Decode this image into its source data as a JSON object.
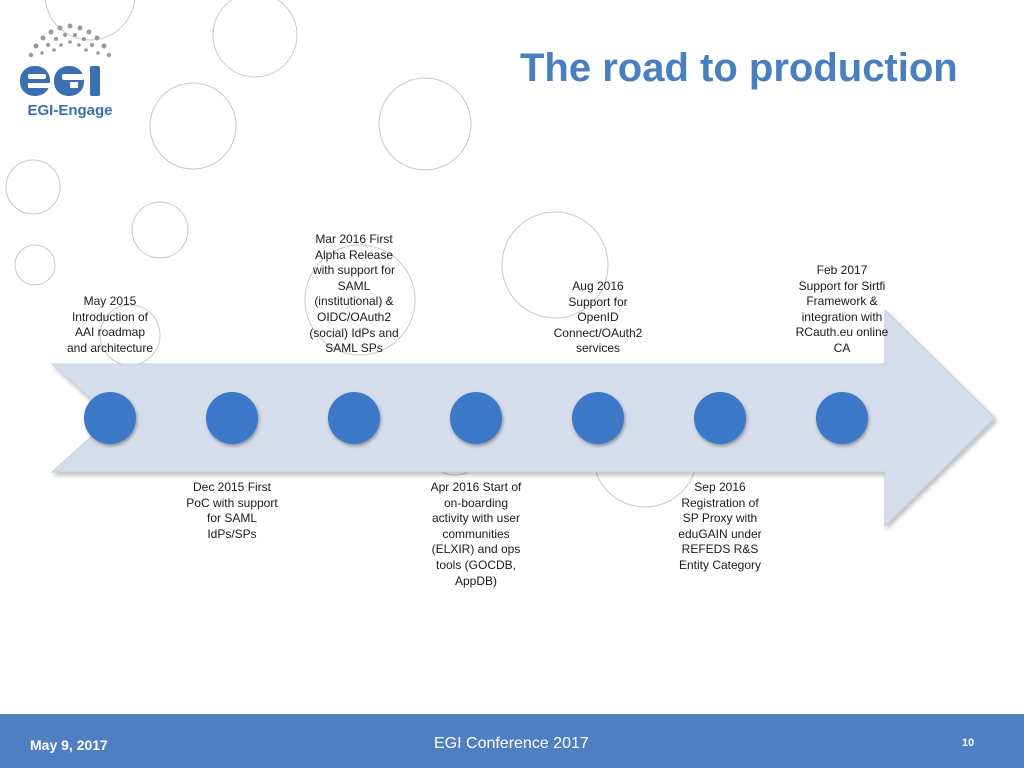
{
  "logo": {
    "text": "EGI-Engage"
  },
  "slide": {
    "title": "The road to production"
  },
  "milestones_top": [
    {
      "text": "May 2015\nIntroduction of\nAAI roadmap\nand architecture"
    },
    {
      "text": "Mar 2016 First\nAlpha Release\nwith support for\nSAML\n(institutional) &\nOIDC/OAuth2\n(social) IdPs and\nSAML SPs"
    },
    {
      "text": "Aug 2016\nSupport for\nOpenID\nConnect/OAuth2\nservices"
    },
    {
      "text": "Feb 2017\nSupport for Sirtfi\nFramework &\nintegration with\nRCauth.eu online\nCA"
    }
  ],
  "milestones_bottom": [
    {
      "text": "Dec 2015 First\nPoC with support\nfor SAML\nIdPs/SPs"
    },
    {
      "text": "Apr 2016 Start of\non-boarding\nactivity with user\ncommunities\n(ELXIR) and ops\ntools (GOCDB,\nAppDB)"
    },
    {
      "text": "Sep 2016\nRegistration of\nSP Proxy with\neduGAIN under\nREFEDS R&S\nEntity Category"
    }
  ],
  "footer": {
    "date": "May 9, 2017",
    "conference": "EGI Conference 2017",
    "page": "10"
  },
  "colors": {
    "title": "#4a7fbf",
    "dot": "#3b78c8",
    "arrow": "#d5ddec",
    "footer": "#4f7fc3"
  }
}
